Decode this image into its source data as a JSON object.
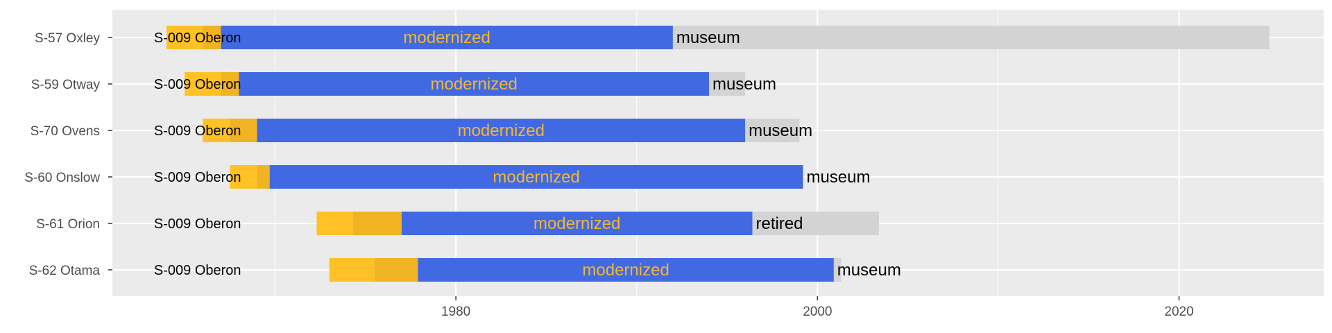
{
  "chart_data": {
    "type": "bar",
    "subtype": "timeline",
    "title": "",
    "xlabel": "",
    "ylabel": "",
    "xlim": [
      1961,
      2028
    ],
    "xticks": [
      1980,
      2000,
      2020
    ],
    "grid": true,
    "legend": "none",
    "colors": {
      "building": "#FFC125",
      "commissioning": "#F0B323",
      "in_service": "#4169E1",
      "post_service": "#D3D3D3",
      "class_label": "#000000",
      "in_service_label": "#F5B82E"
    },
    "boats": [
      {
        "name": "S-57 Oxley",
        "class_label": "S-009 Oberon",
        "building": [
          1964.0,
          1966.0
        ],
        "commissioning": [
          1966.0,
          1967.0
        ],
        "in_service": [
          1967.0,
          1992.0
        ],
        "in_service_label": "modernized",
        "post": [
          1992.0,
          2025.0
        ],
        "post_label": "museum"
      },
      {
        "name": "S-59 Otway",
        "class_label": "S-009 Oberon",
        "building": [
          1965.0,
          1967.0
        ],
        "commissioning": [
          1967.0,
          1968.0
        ],
        "in_service": [
          1968.0,
          1994.0
        ],
        "in_service_label": "modernized",
        "post": [
          1994.0,
          1996.0
        ],
        "post_label": "museum"
      },
      {
        "name": "S-70 Ovens",
        "class_label": "S-009 Oberon",
        "building": [
          1966.0,
          1967.5
        ],
        "commissioning": [
          1967.5,
          1969.0
        ],
        "in_service": [
          1969.0,
          1996.0
        ],
        "in_service_label": "modernized",
        "post": [
          1996.0,
          1999.0
        ],
        "post_label": "museum"
      },
      {
        "name": "S-60 Onslow",
        "class_label": "S-009 Oberon",
        "building": [
          1967.5,
          1969.0
        ],
        "commissioning": [
          1969.0,
          1969.7
        ],
        "in_service": [
          1969.7,
          1999.2
        ],
        "in_service_label": "modernized",
        "post": [
          1999.2,
          1999.2
        ],
        "post_label": "museum"
      },
      {
        "name": "S-61 Orion",
        "class_label": "S-009 Oberon",
        "building": [
          1972.3,
          1974.3
        ],
        "commissioning": [
          1974.3,
          1977.0
        ],
        "in_service": [
          1977.0,
          1996.4
        ],
        "in_service_label": "modernized",
        "post": [
          1996.4,
          2003.4
        ],
        "post_label": "retired"
      },
      {
        "name": "S-62 Otama",
        "class_label": "S-009 Oberon",
        "building": [
          1973.0,
          1975.5
        ],
        "commissioning": [
          1975.5,
          1977.9
        ],
        "in_service": [
          1977.9,
          2000.9
        ],
        "in_service_label": "modernized",
        "post": [
          2000.9,
          2001.3
        ],
        "post_label": "museum"
      }
    ]
  }
}
